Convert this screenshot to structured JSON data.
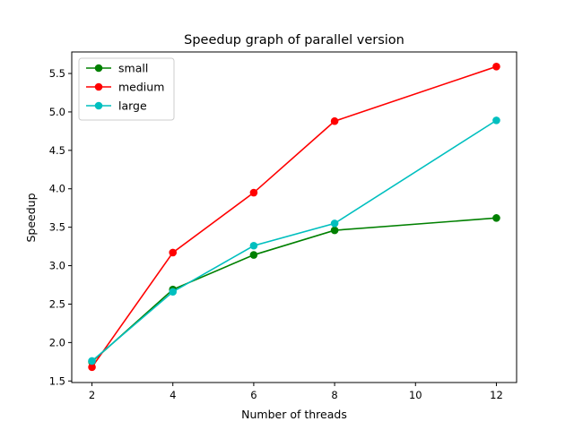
{
  "chart_data": {
    "type": "line",
    "title": "Speedup graph of parallel version",
    "xlabel": "Number of threads",
    "ylabel": "Speedup",
    "x": [
      2,
      4,
      6,
      8,
      12
    ],
    "xlim": [
      1.5,
      12.5
    ],
    "ylim": [
      1.48,
      5.78
    ],
    "xticks": [
      2,
      4,
      6,
      8,
      10,
      12
    ],
    "yticks": [
      1.5,
      2.0,
      2.5,
      3.0,
      3.5,
      4.0,
      4.5,
      5.0,
      5.5
    ],
    "ytick_labels": [
      "1.5",
      "2.0",
      "2.5",
      "3.0",
      "3.5",
      "4.0",
      "4.5",
      "5.0",
      "5.5"
    ],
    "grid": false,
    "legend_position": "top-left",
    "series": [
      {
        "name": "small",
        "color": "#008000",
        "values": [
          1.75,
          2.69,
          3.14,
          3.46,
          3.62
        ]
      },
      {
        "name": "medium",
        "color": "#ff0000",
        "values": [
          1.68,
          3.17,
          3.95,
          4.88,
          5.59
        ]
      },
      {
        "name": "large",
        "color": "#00bfbf",
        "values": [
          1.76,
          2.66,
          3.26,
          3.55,
          4.89
        ]
      }
    ]
  }
}
